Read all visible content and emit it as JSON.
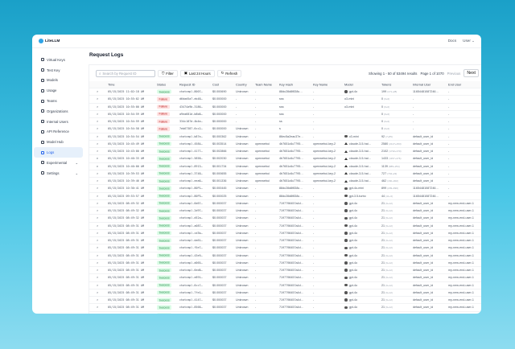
{
  "app": {
    "name": "LiteLLM",
    "docs": "Docs",
    "user": "User"
  },
  "sidebar": {
    "items": [
      {
        "label": "Virtual Keys",
        "icon": "key-icon"
      },
      {
        "label": "Test Key",
        "icon": "play-icon"
      },
      {
        "label": "Models",
        "icon": "block-icon"
      },
      {
        "label": "Usage",
        "icon": "bar-chart-icon"
      },
      {
        "label": "Teams",
        "icon": "team-icon"
      },
      {
        "label": "Organizations",
        "icon": "bank-icon"
      },
      {
        "label": "Internal Users",
        "icon": "user-icon"
      },
      {
        "label": "API Reference",
        "icon": "api-icon"
      },
      {
        "label": "Model Hub",
        "icon": "app-store-icon"
      },
      {
        "label": "Logs",
        "icon": "line-chart-icon",
        "active": true
      },
      {
        "label": "Experimental",
        "icon": "experiment-icon",
        "expandable": true
      },
      {
        "label": "Settings",
        "icon": "settings-icon",
        "expandable": true
      }
    ]
  },
  "page": {
    "title": "Request Logs"
  },
  "toolbar": {
    "search_placeholder": "Search by Request ID",
    "filter": "Filter",
    "range": "Last 24 Hours",
    "refresh": "Refresh",
    "showing": "Showing 1 - 50 of 53494 results",
    "page": "Page 1 of 1070",
    "previous": "Previous",
    "next": "Next"
  },
  "columns": [
    "Time",
    "Status",
    "Request ID",
    "Cost",
    "Country",
    "Team Name",
    "Key Hash",
    "Key Name",
    "Model",
    "Tokens",
    "Internal User",
    "End User"
  ],
  "rows": [
    [
      "05/15/2025 11:02:18 AM",
      "Success",
      "chatcmpl-8007…",
      "$0.000690",
      "Unknown",
      "-",
      "88dc28d8f838c…",
      "-",
      "gpt-4o",
      "199",
      "(171+28)",
      "11654481087246…",
      "-",
      ">"
    ],
    [
      "05/15/2025 10:55:02 AM",
      "Failure",
      "d6dad5a7-eb48…",
      "$0.000000",
      "-",
      "-",
      "sss",
      "-",
      "o3-mini",
      "0",
      "(0+0)",
      "-",
      "-",
      ">"
    ],
    [
      "05/15/2025 10:55:00 AM",
      "Failure",
      "43474a9b-3186…",
      "$0.000000",
      "-",
      "-",
      "sss",
      "-",
      "o3-mini",
      "0",
      "(0+0)",
      "-",
      "-",
      ">"
    ],
    [
      "05/15/2025 10:54:59 AM",
      "Failure",
      "a9ea681d-b8b8…",
      "$0.000000",
      "-",
      "-",
      "sss",
      "-",
      "",
      "0",
      "(0+0)",
      "-",
      "-",
      ">"
    ],
    [
      "05/15/2025 10:54:59 AM",
      "Failure",
      "334c187d-4b4e…",
      "$0.000000",
      "-",
      "-",
      "ss",
      "-",
      "",
      "0",
      "(0+0)",
      "-",
      "-",
      ">"
    ],
    [
      "05/15/2025 10:54:58 AM",
      "Failure",
      "7eb67387-6cc2…",
      "$0.000000",
      "Unknown",
      "-",
      "s",
      "-",
      "",
      "0",
      "(0+0)",
      "-",
      "-",
      ">"
    ],
    [
      "05/15/2025 10:54:54 AM",
      "Success",
      "chatcmpl-b87e…",
      "$0.000362",
      "Unknown",
      "-",
      "86ec5a2eac37e…",
      "-",
      "o3-mini",
      "92",
      "(7+85)",
      "default_user_id",
      "-",
      ">"
    ],
    [
      "05/15/2025 10:45:49 AM",
      "Success",
      "chatcmpl-4584…",
      "$0.003514",
      "Unknown",
      "openwebui",
      "4b7651c6c7795…",
      "openwebui-key-2",
      "claude-3-5-hai…",
      "2580",
      "(2127+453)",
      "default_user_id",
      "-",
      ">"
    ],
    [
      "05/15/2025 10:43:00 AM",
      "Success",
      "chatcmpl-4177…",
      "$0.002866",
      "Unknown",
      "openwebui",
      "4b7651c6c7795…",
      "openwebui-key-2",
      "claude-3-5-hai…",
      "2102",
      "(1732+370)",
      "default_user_id",
      "-",
      ">"
    ],
    [
      "05/15/2025 10:40:33 AM",
      "Success",
      "chatcmpl-5858…",
      "$0.002030",
      "Unknown",
      "openwebui",
      "4b7651c6c7795…",
      "openwebui-key-2",
      "claude-3-5-hai…",
      "1433",
      "(1157+276)",
      "default_user_id",
      "-",
      "v"
    ],
    [
      "05/15/2025 10:40:00 AM",
      "Success",
      "chatcmpl-8913…",
      "$0.001734",
      "Unknown",
      "openwebui",
      "4b7651c6c7795…",
      "openwebui-key-2",
      "claude-3-5-hai…",
      "1139",
      "(885+254)",
      "default_user_id",
      "-",
      "v"
    ],
    [
      "05/15/2025 10:39:53 AM",
      "Success",
      "chatcmpl-3748…",
      "$0.000655",
      "Unknown",
      "openwebui",
      "4b7651c6c7795…",
      "openwebui-key-2",
      "claude-3-5-hai…",
      "727",
      "(704+23)",
      "default_user_id",
      "-",
      ">"
    ],
    [
      "05/15/2025 10:39:46 AM",
      "Success",
      "chatcmpl-eea6…",
      "$0.001336",
      "Unknown",
      "openwebui",
      "4b7651c6c7795…",
      "openwebui-key-2",
      "claude-3-5-hai…",
      "462",
      "(160+302)",
      "default_user_id",
      "-",
      ">"
    ],
    [
      "05/15/2025 10:30:41 AM",
      "Success",
      "chatcmpl-80P1…",
      "$0.000445",
      "Unknown",
      "-",
      "88dc28d8f838c…",
      "-",
      "gpt-4o-mini",
      "899",
      "(209+690)",
      "11654481087246…",
      "-",
      ">"
    ],
    [
      "05/15/2025 09:53:57 AM",
      "Success",
      "chatcmpl-80P3…",
      "$0.000025",
      "Unknown",
      "-",
      "88dc28d8f838c…",
      "-",
      "gpt-3.5-turbo",
      "44",
      "(41+3)",
      "11654481087246…",
      "-",
      ">"
    ],
    [
      "05/15/2025 08:49:32 AM",
      "Success",
      "chatcmpl-6d67…",
      "$0.000037",
      "Unknown",
      "-",
      "7197798457a4d…",
      "-",
      "gpt-4o",
      "21",
      "(9+12)",
      "default_user_id",
      "my-new-end-user-1",
      ">"
    ],
    [
      "05/15/2025 08:49:32 AM",
      "Success",
      "chatcmpl-2d97…",
      "$0.000037",
      "Unknown",
      "-",
      "7197798457a4d…",
      "-",
      "gpt-4o",
      "21",
      "(9+12)",
      "default_user_id",
      "my-new-end-user-1",
      ">"
    ],
    [
      "05/15/2025 08:49:32 AM",
      "Success",
      "chatcmpl-d52a…",
      "$0.000037",
      "Unknown",
      "-",
      "7197798457a4d…",
      "-",
      "gpt-4o",
      "21",
      "(9+12)",
      "default_user_id",
      "my-new-end-user-1",
      ">"
    ],
    [
      "05/15/2025 08:49:31 AM",
      "Success",
      "chatcmpl-a087…",
      "$0.000037",
      "Unknown",
      "-",
      "7197798457a4d…",
      "-",
      "gpt-4o",
      "21",
      "(9+12)",
      "default_user_id",
      "my-new-end-user-1",
      ">"
    ],
    [
      "05/15/2025 08:49:31 AM",
      "Success",
      "chatcmpl-cd3b…",
      "$0.000037",
      "Unknown",
      "-",
      "7197798457a4d…",
      "-",
      "gpt-4o",
      "21",
      "(9+12)",
      "default_user_id",
      "my-new-end-user-1",
      ">"
    ],
    [
      "05/15/2025 08:49:31 AM",
      "Success",
      "chatcmpl-da61…",
      "$0.000037",
      "Unknown",
      "-",
      "7197798457a4d…",
      "-",
      "gpt-4o",
      "21",
      "(9+12)",
      "default_user_id",
      "my-new-end-user-1",
      ">"
    ],
    [
      "05/15/2025 08:49:31 AM",
      "Success",
      "chatcmpl-f5e7…",
      "$0.000037",
      "Unknown",
      "-",
      "7197798457a4d…",
      "-",
      "gpt-4o",
      "21",
      "(9+12)",
      "default_user_id",
      "my-new-end-user-1",
      ">"
    ],
    [
      "05/15/2025 08:49:31 AM",
      "Success",
      "chatcmpl-43e9…",
      "$0.000037",
      "Unknown",
      "-",
      "7197798457a4d…",
      "-",
      "gpt-4o",
      "21",
      "(9+12)",
      "default_user_id",
      "my-new-end-user-1",
      ">"
    ],
    [
      "05/15/2025 08:49:31 AM",
      "Success",
      "chatcmpl-d065…",
      "$0.000037",
      "Unknown",
      "-",
      "7197798457a4d…",
      "-",
      "gpt-4o",
      "21",
      "(9+12)",
      "default_user_id",
      "my-new-end-user-1",
      ">"
    ],
    [
      "05/15/2025 08:49:31 AM",
      "Success",
      "chatcmpl-6ed8…",
      "$0.000037",
      "Unknown",
      "-",
      "7197798457a4d…",
      "-",
      "gpt-4o",
      "21",
      "(9+12)",
      "default_user_id",
      "my-new-end-user-1",
      ">"
    ],
    [
      "05/15/2025 08:49:31 AM",
      "Success",
      "chatcmpl-e891…",
      "$0.000037",
      "Unknown",
      "-",
      "7197798457a4d…",
      "-",
      "gpt-4o",
      "21",
      "(9+12)",
      "default_user_id",
      "my-new-end-user-1",
      ">"
    ],
    [
      "05/15/2025 08:49:31 AM",
      "Success",
      "chatcmpl-6cc7…",
      "$0.000037",
      "Unknown",
      "-",
      "7197798457a4d…",
      "-",
      "gpt-4o",
      "21",
      "(9+12)",
      "default_user_id",
      "my-new-end-user-1",
      ">"
    ],
    [
      "05/15/2025 08:49:31 AM",
      "Success",
      "chatcmpl-7fe1…",
      "$0.000037",
      "Unknown",
      "-",
      "7197798457a4d…",
      "-",
      "gpt-4o",
      "21",
      "(9+12)",
      "default_user_id",
      "my-new-end-user-1",
      ">"
    ],
    [
      "05/15/2025 08:49:31 AM",
      "Success",
      "chatcmpl-4147…",
      "$0.000037",
      "Unknown",
      "-",
      "7197798457a4d…",
      "-",
      "gpt-4o",
      "21",
      "(9+12)",
      "default_user_id",
      "my-new-end-user-1",
      ">"
    ],
    [
      "05/15/2025 08:49:31 AM",
      "Success",
      "chatcmpl-8568…",
      "$0.000037",
      "Unknown",
      "-",
      "7197798457a4d…",
      "-",
      "gpt-4o",
      "21",
      "(9+12)",
      "default_user_id",
      "my-new-end-user-1",
      ">"
    ],
    [
      "05/15/2025 08:49:31 AM",
      "Success",
      "chatcmpl-e227…",
      "$0.000037",
      "Unknown",
      "-",
      "7197798457a4d…",
      "-",
      "gpt-4o",
      "21",
      "(9+12)",
      "default_user_id",
      "my-new-end-user-1",
      ">"
    ]
  ]
}
